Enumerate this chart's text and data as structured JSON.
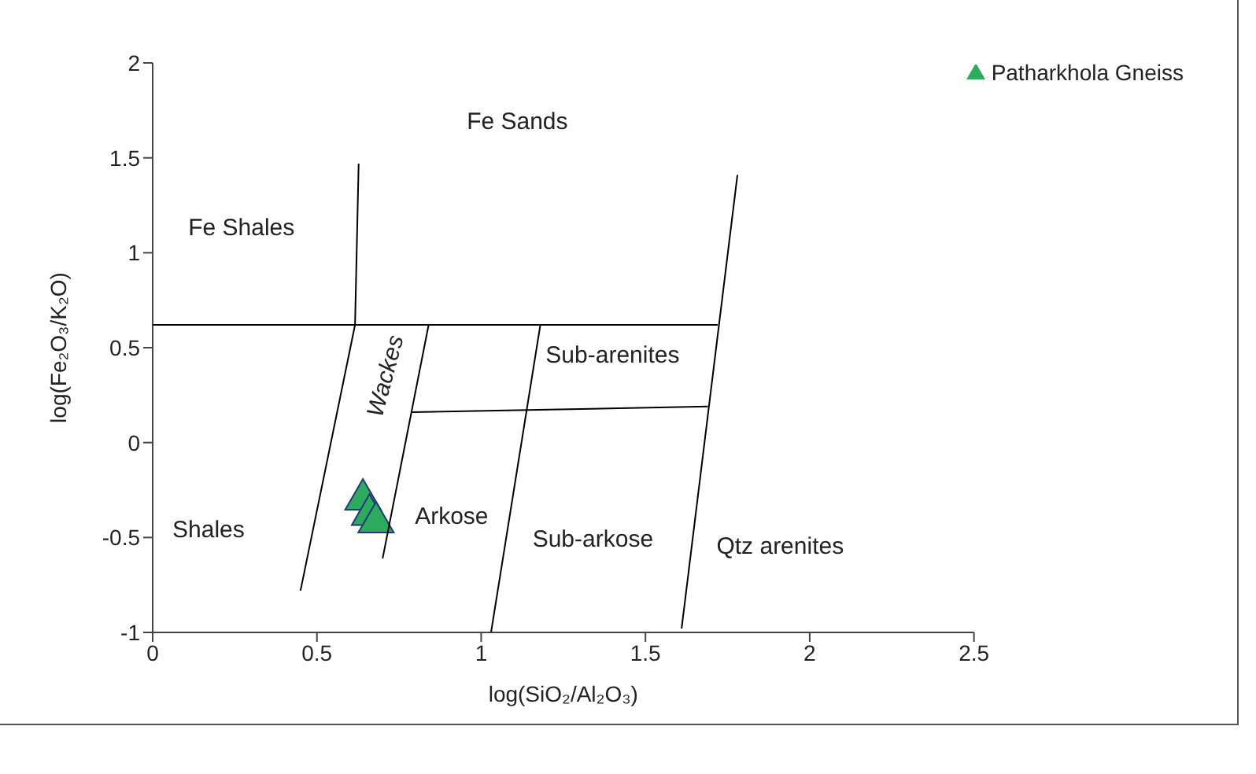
{
  "chart_data": {
    "type": "scatter",
    "xlabel": "log(SiO₂/Al₂O₃)",
    "ylabel": "log(Fe₂O₃/K₂O)",
    "xlim": [
      0,
      2.5
    ],
    "xticks": [
      0,
      0.5,
      1,
      1.5,
      2,
      2.5
    ],
    "ylim": [
      -1,
      2
    ],
    "yticks": [
      -1,
      -0.5,
      0,
      0.5,
      1,
      1.5,
      2
    ],
    "grid": false,
    "legend": "top right",
    "marker": "triangle",
    "series": [
      {
        "name": "Patharkhola Gneiss",
        "color": "#2eaa5c",
        "x": [
          0.64,
          0.66,
          0.68
        ],
        "values": [
          -0.3,
          -0.38,
          -0.42
        ]
      },
      {
        "type": "line",
        "color": "#000000",
        "marker": "none",
        "x": [
          0,
          1.72
        ],
        "values": [
          0.62,
          0.62
        ]
      },
      {
        "type": "line",
        "color": "#000000",
        "marker": "none",
        "x": [
          0.627,
          0.616,
          0.45
        ],
        "values": [
          1.47,
          0.62,
          -0.78
        ]
      },
      {
        "type": "line",
        "color": "#000000",
        "marker": "none",
        "x": [
          0.84,
          0.7
        ],
        "values": [
          0.62,
          -0.61
        ]
      },
      {
        "type": "line",
        "color": "#000000",
        "marker": "none",
        "x": [
          0.79,
          1.69
        ],
        "values": [
          0.16,
          0.19
        ]
      },
      {
        "type": "line",
        "color": "#000000",
        "marker": "none",
        "x": [
          1.18,
          1.03
        ],
        "values": [
          0.62,
          -1
        ]
      },
      {
        "type": "line",
        "color": "#000000",
        "marker": "none",
        "x": [
          1.78,
          1.61
        ],
        "values": [
          1.41,
          -0.98
        ]
      }
    ],
    "annotations": [
      "Fe Shales",
      "Fe Sands",
      "Wackes",
      "Sub-arenites",
      "Shales",
      "Arkose",
      "Sub-arkose",
      "Qtz arenites"
    ]
  }
}
